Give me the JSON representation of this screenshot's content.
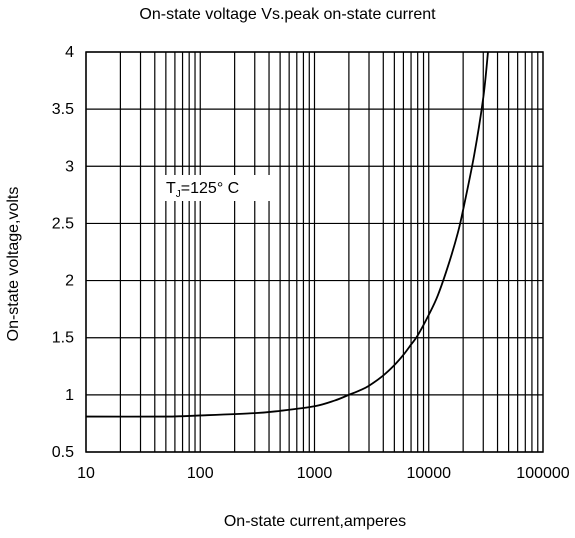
{
  "chart_data": {
    "type": "line",
    "title": "On-state voltage Vs.peak on-state current",
    "xlabel": "On-state current,amperes",
    "ylabel": "On-state voltage,volts",
    "x_scale": "log",
    "xlim": [
      10,
      100000
    ],
    "ylim": [
      0.5,
      4
    ],
    "x_ticks": [
      10,
      100,
      1000,
      10000,
      100000
    ],
    "x_tick_labels": [
      "10",
      "100",
      "1000",
      "10000",
      "100000"
    ],
    "y_ticks": [
      0.5,
      1,
      1.5,
      2,
      2.5,
      3,
      3.5,
      4
    ],
    "y_tick_labels": [
      "0.5",
      "1",
      "1.5",
      "2",
      "2.5",
      "3",
      "3.5",
      "4"
    ],
    "grid": true,
    "annotation": {
      "base": "T",
      "subscript": "J",
      "rest": "=125° C"
    },
    "series": [
      {
        "color": "#000000",
        "x": [
          10,
          50,
          100,
          300,
          500,
          1000,
          1500,
          2000,
          2500,
          3000,
          4000,
          5000,
          6000,
          7000,
          8000,
          10000,
          12000,
          15000,
          18000,
          20000,
          25000,
          30000,
          33000
        ],
        "y": [
          0.81,
          0.81,
          0.82,
          0.84,
          0.86,
          0.9,
          0.95,
          1.0,
          1.04,
          1.08,
          1.17,
          1.26,
          1.35,
          1.44,
          1.52,
          1.7,
          1.87,
          2.15,
          2.42,
          2.62,
          3.1,
          3.6,
          4.0
        ]
      }
    ]
  }
}
